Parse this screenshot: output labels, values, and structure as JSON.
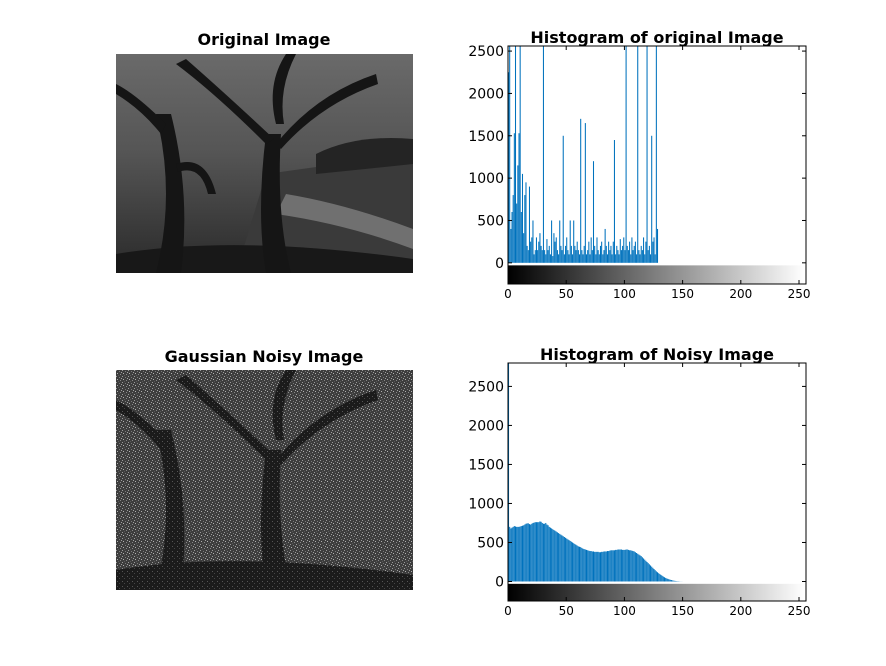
{
  "figure": {
    "titles": {
      "original_image": "Original Image",
      "noisy_image": "Gaussian Noisy Image"
    }
  },
  "colors": {
    "bar": "#0072bd",
    "axis": "#000000"
  },
  "chart_data": [
    {
      "type": "bar",
      "title": "Histogram of original Image",
      "xlabel": "",
      "ylabel": "",
      "xlim": [
        0,
        256
      ],
      "ylim": [
        -250,
        2560
      ],
      "x_ticks": [
        0,
        50,
        100,
        150,
        200,
        250
      ],
      "y_ticks": [
        0,
        500,
        1000,
        1500,
        2000,
        2500
      ],
      "colorbar": "grayscale 0-255 below x axis",
      "bins": {
        "start": 0,
        "width": 1
      },
      "values": [
        2250,
        2560,
        400,
        600,
        800,
        1530,
        2560,
        700,
        1150,
        1530,
        2560,
        600,
        1050,
        350,
        800,
        950,
        200,
        150,
        900,
        250,
        300,
        500,
        100,
        150,
        300,
        150,
        250,
        350,
        200,
        150,
        2560,
        150,
        100,
        280,
        150,
        200,
        100,
        500,
        80,
        350,
        250,
        300,
        150,
        100,
        500,
        200,
        150,
        1500,
        100,
        200,
        300,
        150,
        100,
        500,
        200,
        100,
        500,
        200,
        150,
        250,
        150,
        100,
        1700,
        150,
        100,
        200,
        1650,
        100,
        150,
        250,
        100,
        300,
        150,
        1200,
        200,
        100,
        300,
        150,
        100,
        200,
        250,
        100,
        150,
        400,
        200,
        100,
        250,
        150,
        200,
        100,
        250,
        1450,
        100,
        200,
        150,
        100,
        280,
        150,
        200,
        300,
        150,
        2560,
        200,
        150,
        250,
        100,
        300,
        150,
        200,
        250,
        100,
        2560,
        150,
        100,
        200,
        150,
        300,
        100,
        250,
        2560,
        150,
        200,
        100,
        1500,
        250,
        300,
        100,
        2560,
        400
      ]
    },
    {
      "type": "bar",
      "title": "Histogram of Noisy Image",
      "xlabel": "",
      "ylabel": "",
      "xlim": [
        0,
        256
      ],
      "ylim": [
        -250,
        2800
      ],
      "x_ticks": [
        0,
        50,
        100,
        150,
        200,
        250
      ],
      "y_ticks": [
        0,
        500,
        1000,
        1500,
        2000,
        2500
      ],
      "colorbar": "grayscale 0-255 below x axis",
      "bins": {
        "start": 0,
        "width": 1
      },
      "values": [
        2800,
        700,
        680,
        690,
        700,
        710,
        705,
        700,
        700,
        700,
        705,
        710,
        715,
        720,
        730,
        740,
        745,
        745,
        735,
        730,
        740,
        750,
        755,
        760,
        760,
        760,
        760,
        770,
        765,
        750,
        740,
        740,
        750,
        730,
        720,
        700,
        690,
        680,
        670,
        660,
        650,
        640,
        630,
        620,
        610,
        600,
        590,
        580,
        570,
        560,
        550,
        540,
        530,
        520,
        510,
        500,
        490,
        480,
        470,
        460,
        450,
        445,
        440,
        430,
        420,
        415,
        410,
        405,
        400,
        395,
        390,
        390,
        385,
        385,
        380,
        380,
        380,
        380,
        375,
        375,
        380,
        380,
        385,
        385,
        385,
        390,
        390,
        395,
        400,
        400,
        400,
        400,
        405,
        405,
        410,
        410,
        410,
        410,
        405,
        405,
        405,
        410,
        410,
        405,
        400,
        400,
        395,
        390,
        385,
        375,
        365,
        355,
        345,
        335,
        325,
        310,
        295,
        280,
        265,
        250,
        235,
        220,
        205,
        190,
        175,
        160,
        145,
        130,
        118,
        106,
        95,
        84,
        73,
        63,
        54,
        46,
        39,
        33,
        27,
        22,
        18,
        14,
        11,
        8,
        6,
        4,
        3,
        2,
        1,
        1,
        0,
        0,
        0,
        0,
        0,
        0,
        0,
        0,
        0,
        0,
        0,
        0,
        0,
        0,
        0,
        0,
        0,
        0,
        0,
        0,
        0,
        0,
        0,
        0,
        0,
        0,
        0,
        0,
        0,
        0,
        0,
        0,
        0,
        0,
        0,
        0,
        0,
        0,
        0,
        0,
        0,
        0,
        0,
        0,
        0,
        0,
        0,
        0,
        0,
        0,
        0,
        0,
        0,
        0,
        0,
        0,
        0,
        0,
        0,
        0,
        0,
        0,
        0,
        0,
        0,
        0,
        0,
        0,
        0,
        0,
        0,
        0,
        0,
        0,
        0,
        0,
        0,
        0,
        0,
        0,
        0,
        0,
        0,
        0,
        0,
        0,
        0,
        0,
        0,
        0,
        0,
        0,
        0,
        0,
        0,
        0,
        0,
        0,
        0,
        0,
        0,
        0,
        0,
        0,
        0,
        0,
        0,
        0,
        0,
        0,
        0,
        0,
        0,
        0,
        0,
        0,
        0,
        0,
        0,
        0,
        0,
        0
      ]
    }
  ]
}
